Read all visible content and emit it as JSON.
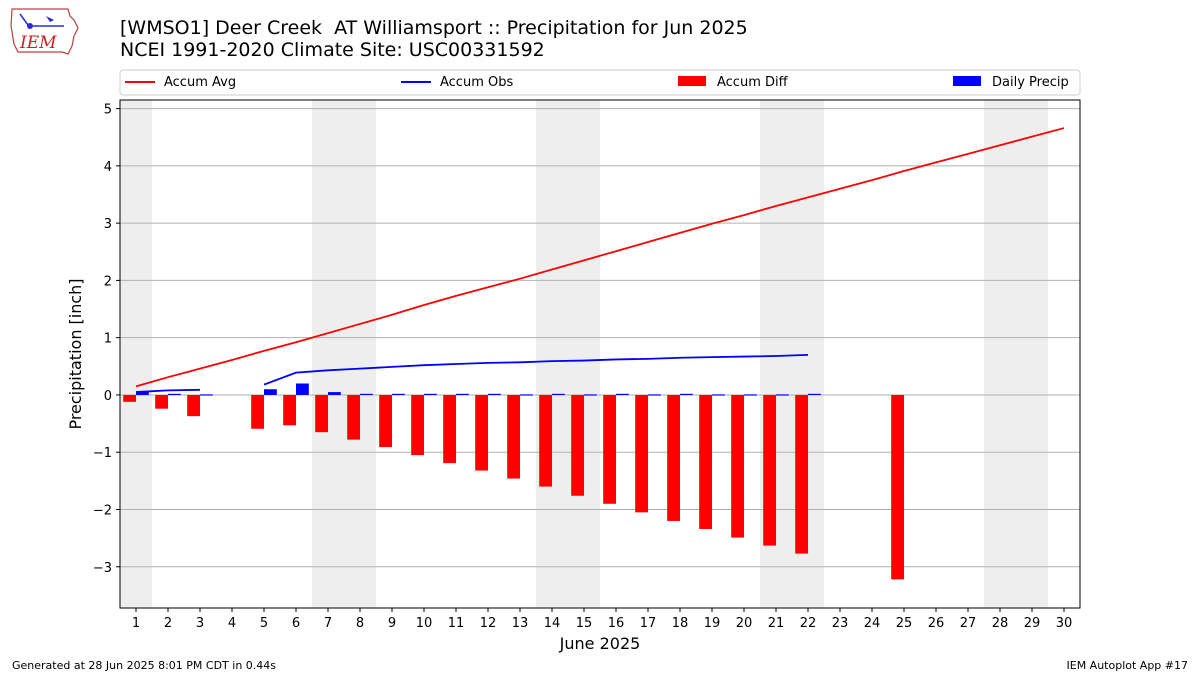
{
  "logo": {
    "text": "IEM"
  },
  "title": {
    "line1": "[WMSO1] Deer Creek  AT Williamsport :: Precipitation for Jun 2025",
    "line2": "NCEI 1991-2020 Climate Site: USC00331592"
  },
  "footer": {
    "left": "Generated at 28 Jun 2025 8:01 PM CDT in 0.44s",
    "right": "IEM Autoplot App #17"
  },
  "colors": {
    "avg": "#ff0000",
    "obs": "#0000ff",
    "diff": "#ff0000",
    "daily": "#0000ff",
    "weekend_band": "#eeeeee",
    "grid": "#b0b0b0"
  },
  "chart_data": {
    "type": "bar",
    "xlabel": "June 2025",
    "ylabel": "Precipitation [inch]",
    "ylim": [
      -3.72,
      5.15
    ],
    "xlim": [
      0.5,
      30.5
    ],
    "x_ticks": [
      1,
      2,
      3,
      4,
      5,
      6,
      7,
      8,
      9,
      10,
      11,
      12,
      13,
      14,
      15,
      16,
      17,
      18,
      19,
      20,
      21,
      22,
      23,
      24,
      25,
      26,
      27,
      28,
      29,
      30
    ],
    "y_ticks": [
      -3,
      -2,
      -1,
      0,
      1,
      2,
      3,
      4,
      5
    ],
    "y_tick_labels": [
      "−3",
      "−2",
      "−1",
      "0",
      "1",
      "2",
      "3",
      "4",
      "5"
    ],
    "grid": "horizontal",
    "legend_position": "top",
    "legend": [
      {
        "label": "Accum Avg",
        "kind": "line",
        "color": "#ff0000"
      },
      {
        "label": "Accum Obs",
        "kind": "line",
        "color": "#0000ff"
      },
      {
        "label": "Accum Diff",
        "kind": "bar",
        "color": "#ff0000"
      },
      {
        "label": "Daily Precip",
        "kind": "bar",
        "color": "#0000ff"
      }
    ],
    "weekend_bands": [
      [
        0.5,
        1.5
      ],
      [
        6.5,
        8.5
      ],
      [
        13.5,
        15.5
      ],
      [
        20.5,
        22.5
      ],
      [
        27.5,
        29.5
      ]
    ],
    "series": [
      {
        "name": "Accum Avg",
        "kind": "line",
        "x": [
          1,
          2,
          3,
          4,
          5,
          6,
          7,
          8,
          9,
          10,
          11,
          12,
          13,
          14,
          15,
          16,
          17,
          18,
          19,
          20,
          21,
          22,
          23,
          24,
          25,
          26,
          27,
          28,
          29,
          30
        ],
        "values": [
          0.15,
          0.31,
          0.46,
          0.61,
          0.77,
          0.92,
          1.08,
          1.24,
          1.4,
          1.57,
          1.73,
          1.88,
          2.03,
          2.19,
          2.35,
          2.51,
          2.67,
          2.83,
          2.99,
          3.14,
          3.3,
          3.45,
          3.6,
          3.75,
          3.91,
          4.06,
          4.21,
          4.36,
          4.51,
          4.66
        ]
      },
      {
        "name": "Accum Obs",
        "kind": "line",
        "segments": [
          {
            "x": [
              1,
              2,
              3
            ],
            "values": [
              0.05,
              0.08,
              0.09
            ]
          },
          {
            "x": [
              5,
              6,
              7,
              8,
              9,
              10,
              11,
              12,
              13,
              14,
              15,
              16,
              17,
              18,
              19,
              20,
              21,
              22
            ],
            "values": [
              0.18,
              0.39,
              0.43,
              0.46,
              0.49,
              0.52,
              0.54,
              0.56,
              0.57,
              0.59,
              0.6,
              0.62,
              0.63,
              0.65,
              0.66,
              0.67,
              0.68,
              0.7
            ]
          }
        ]
      },
      {
        "name": "Accum Diff",
        "kind": "bar",
        "x": [
          1,
          2,
          3,
          5,
          6,
          7,
          8,
          9,
          10,
          11,
          12,
          13,
          14,
          15,
          16,
          17,
          18,
          19,
          20,
          21,
          22,
          25
        ],
        "values": [
          -0.12,
          -0.24,
          -0.37,
          -0.59,
          -0.53,
          -0.65,
          -0.78,
          -0.91,
          -1.05,
          -1.19,
          -1.32,
          -1.46,
          -1.6,
          -1.76,
          -1.9,
          -2.05,
          -2.2,
          -2.34,
          -2.49,
          -2.63,
          -2.77,
          -3.22
        ]
      },
      {
        "name": "Daily Precip",
        "kind": "bar",
        "x": [
          1,
          2,
          3,
          5,
          6,
          7,
          8,
          9,
          10,
          11,
          12,
          13,
          14,
          15,
          16,
          17,
          18,
          19,
          20,
          21,
          22
        ],
        "values": [
          0.05,
          0.02,
          0.01,
          0.1,
          0.2,
          0.05,
          0.02,
          0.02,
          0.02,
          0.02,
          0.02,
          0.01,
          0.02,
          0.01,
          0.02,
          0.01,
          0.02,
          0.01,
          0.01,
          0.01,
          0.02
        ]
      }
    ]
  }
}
